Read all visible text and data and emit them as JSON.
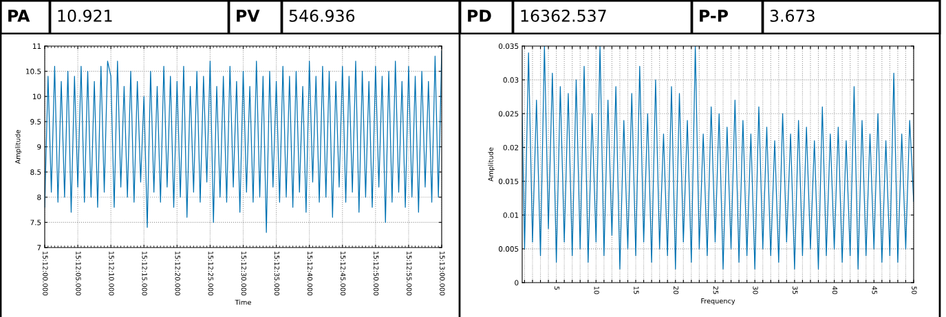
{
  "chart_data": [
    {
      "type": "other",
      "annotations": [
        "PA",
        "10.921",
        "PV",
        "546.936",
        "PD",
        "16362.537",
        "P-P",
        "3.673"
      ]
    },
    {
      "type": "line",
      "xlabel": "Time",
      "ylabel": "Amplitude",
      "grid": true,
      "marker": "none",
      "line_style": "solid",
      "categories": [
        "15:12:00.000",
        null,
        null,
        null,
        null,
        null,
        null,
        null,
        null,
        null,
        "15:12:05.000",
        null,
        null,
        null,
        null,
        null,
        null,
        null,
        null,
        null,
        "15:12:10.000",
        null,
        null,
        null,
        null,
        null,
        null,
        null,
        null,
        null,
        "15:12:15.000",
        null,
        null,
        null,
        null,
        null,
        null,
        null,
        null,
        null,
        "15:12:20.000",
        null,
        null,
        null,
        null,
        null,
        null,
        null,
        null,
        null,
        "15:12:25.000",
        null,
        null,
        null,
        null,
        null,
        null,
        null,
        null,
        null,
        "15:12:30.000",
        null,
        null,
        null,
        null,
        null,
        null,
        null,
        null,
        null,
        "15:12:35.000",
        null,
        null,
        null,
        null,
        null,
        null,
        null,
        null,
        null,
        "15:12:40.000",
        null,
        null,
        null,
        null,
        null,
        null,
        null,
        null,
        null,
        "15:12:45.000",
        null,
        null,
        null,
        null,
        null,
        null,
        null,
        null,
        null,
        "15:12:50.000",
        null,
        null,
        null,
        null,
        null,
        null,
        null,
        null,
        null,
        "15:12:55.000",
        null,
        null,
        null,
        null,
        null,
        null,
        null,
        null,
        null,
        "15:13:00.000"
      ],
      "ylim": [
        7,
        11
      ],
      "yticks": [
        7,
        7.5,
        8,
        8.5,
        9,
        9.5,
        10,
        10.5,
        11
      ],
      "series": [
        {
          "color": "#0072b2",
          "values": [
            7.8,
            10.4,
            8.1,
            10.6,
            7.9,
            10.3,
            8.0,
            10.5,
            7.7,
            10.4,
            8.2,
            10.6,
            7.9,
            10.5,
            8.0,
            10.3,
            7.8,
            10.6,
            8.1,
            10.7,
            10.4,
            7.8,
            10.7,
            8.2,
            10.2,
            8.0,
            10.5,
            7.9,
            10.3,
            8.3,
            10.0,
            7.4,
            10.5,
            8.1,
            10.2,
            7.9,
            10.6,
            8.2,
            10.4,
            7.8,
            10.3,
            8.0,
            10.6,
            7.6,
            10.2,
            8.1,
            10.5,
            7.9,
            10.4,
            8.3,
            10.7,
            7.5,
            10.2,
            8.0,
            10.4,
            7.9,
            10.6,
            8.2,
            10.3,
            7.7,
            10.5,
            8.1,
            10.2,
            7.9,
            10.7,
            8.0,
            10.4,
            7.3,
            10.5,
            8.2,
            10.3,
            7.9,
            10.6,
            8.0,
            10.4,
            7.8,
            10.5,
            8.1,
            10.2,
            7.7,
            10.7,
            8.3,
            10.4,
            7.9,
            10.6,
            8.0,
            10.5,
            7.6,
            10.3,
            8.2,
            10.6,
            7.9,
            10.4,
            8.1,
            10.7,
            7.7,
            10.5,
            8.0,
            10.3,
            7.8,
            10.6,
            8.2,
            10.4,
            7.5,
            10.5,
            7.9,
            10.7,
            8.1,
            10.3,
            7.8,
            10.6,
            8.0,
            10.4,
            7.7,
            10.5,
            8.2,
            10.3,
            7.9,
            10.8,
            8.0,
            10.9
          ]
        }
      ]
    },
    {
      "type": "line",
      "xlabel": "Frequency",
      "ylabel": "Amplitude",
      "grid": true,
      "marker": "none",
      "line_style": "solid",
      "xlim": [
        0.7,
        50
      ],
      "ylim": [
        0,
        0.035
      ],
      "yticks": [
        0,
        0.005,
        0.01,
        0.015,
        0.02,
        0.025,
        0.03,
        0.035
      ],
      "xticks": [
        {
          "value": 1,
          "label": null
        },
        {
          "value": 2,
          "label": null
        },
        {
          "value": 3,
          "label": null
        },
        {
          "value": 4,
          "label": null
        },
        5,
        {
          "value": 6,
          "label": null
        },
        {
          "value": 7,
          "label": null
        },
        {
          "value": 8,
          "label": null
        },
        {
          "value": 9,
          "label": null
        },
        10,
        {
          "value": 11,
          "label": null
        },
        {
          "value": 12,
          "label": null
        },
        {
          "value": 13,
          "label": null
        },
        {
          "value": 14,
          "label": null
        },
        15,
        {
          "value": 16,
          "label": null
        },
        {
          "value": 17,
          "label": null
        },
        {
          "value": 18,
          "label": null
        },
        {
          "value": 19,
          "label": null
        },
        20,
        {
          "value": 21,
          "label": null
        },
        {
          "value": 22,
          "label": null
        },
        {
          "value": 23,
          "label": null
        },
        {
          "value": 24,
          "label": null
        },
        25,
        {
          "value": 26,
          "label": null
        },
        {
          "value": 27,
          "label": null
        },
        {
          "value": 28,
          "label": null
        },
        {
          "value": 29,
          "label": null
        },
        30,
        {
          "value": 31,
          "label": null
        },
        {
          "value": 32,
          "label": null
        },
        {
          "value": 33,
          "label": null
        },
        {
          "value": 34,
          "label": null
        },
        35,
        {
          "value": 36,
          "label": null
        },
        {
          "value": 37,
          "label": null
        },
        {
          "value": 38,
          "label": null
        },
        {
          "value": 39,
          "label": null
        },
        40,
        {
          "value": 41,
          "label": null
        },
        {
          "value": 42,
          "label": null
        },
        {
          "value": 43,
          "label": null
        },
        {
          "value": 44,
          "label": null
        },
        45,
        {
          "value": 46,
          "label": null
        },
        {
          "value": 47,
          "label": null
        },
        {
          "value": 48,
          "label": null
        },
        {
          "value": 49,
          "label": null
        },
        50
      ],
      "series": [
        {
          "color": "#0072b2",
          "x": [
            0.7,
            1,
            1.5,
            2,
            2.5,
            3,
            3.5,
            4,
            4.5,
            5,
            5.5,
            6,
            6.5,
            7,
            7.5,
            8,
            8.5,
            9,
            9.5,
            10,
            10.5,
            11,
            11.5,
            12,
            12.5,
            13,
            13.5,
            14,
            14.5,
            15,
            15.5,
            16,
            16.5,
            17,
            17.5,
            18,
            18.5,
            19,
            19.5,
            20,
            20.5,
            21,
            21.5,
            22,
            22.5,
            23,
            23.5,
            24,
            24.5,
            25,
            25.5,
            26,
            26.5,
            27,
            27.5,
            28,
            28.5,
            29,
            29.5,
            30,
            30.5,
            31,
            31.5,
            32,
            32.5,
            33,
            33.5,
            34,
            34.5,
            35,
            35.5,
            36,
            36.5,
            37,
            37.5,
            38,
            38.5,
            39,
            39.5,
            40,
            40.5,
            41,
            41.5,
            42,
            42.5,
            43,
            43.5,
            44,
            44.5,
            45,
            45.5,
            46,
            46.5,
            47,
            47.5,
            48,
            48.5,
            49,
            49.5,
            50
          ],
          "values": [
            0.025,
            0.005,
            0.034,
            0.006,
            0.027,
            0.004,
            0.035,
            0.008,
            0.031,
            0.003,
            0.029,
            0.006,
            0.028,
            0.004,
            0.03,
            0.005,
            0.032,
            0.003,
            0.025,
            0.006,
            0.035,
            0.004,
            0.027,
            0.007,
            0.029,
            0.002,
            0.024,
            0.005,
            0.028,
            0.004,
            0.032,
            0.006,
            0.025,
            0.003,
            0.03,
            0.005,
            0.022,
            0.004,
            0.029,
            0.002,
            0.028,
            0.006,
            0.024,
            0.003,
            0.035,
            0.005,
            0.022,
            0.004,
            0.026,
            0.006,
            0.025,
            0.002,
            0.023,
            0.005,
            0.027,
            0.003,
            0.024,
            0.004,
            0.022,
            0.002,
            0.026,
            0.005,
            0.023,
            0.004,
            0.021,
            0.003,
            0.025,
            0.006,
            0.022,
            0.002,
            0.024,
            0.004,
            0.023,
            0.005,
            0.021,
            0.002,
            0.026,
            0.004,
            0.022,
            0.005,
            0.023,
            0.003,
            0.021,
            0.004,
            0.029,
            0.002,
            0.024,
            0.004,
            0.022,
            0.005,
            0.025,
            0.003,
            0.021,
            0.004,
            0.031,
            0.003,
            0.022,
            0.005,
            0.024,
            0.012
          ]
        }
      ]
    }
  ]
}
